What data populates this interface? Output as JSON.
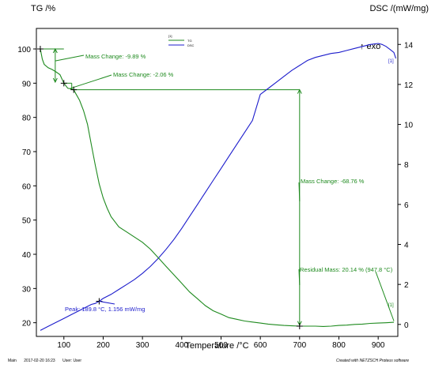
{
  "footer": {
    "view_name": "Main",
    "timestamp": "2017-02-20 16:23",
    "user": "User: User",
    "software_credit": "Created with NETZSCH Proteus software"
  },
  "chart_data": {
    "type": "line",
    "title": "",
    "xlabel": "Temperature /°C",
    "ylabel_left": "TG /%",
    "ylabel_right": "DSC /(mW/mg)",
    "right_axis_note": "↑ exo",
    "xlim": [
      30,
      950
    ],
    "ylim_left": [
      16,
      106
    ],
    "ylim_right": [
      -0.6,
      14.8
    ],
    "x_ticks": [
      100,
      200,
      300,
      400,
      500,
      600,
      700,
      800,
      900
    ],
    "y_ticks_left": [
      20,
      30,
      40,
      50,
      60,
      70,
      80,
      90,
      100
    ],
    "y_ticks_right": [
      0,
      2,
      4,
      6,
      8,
      10,
      12,
      14
    ],
    "grid": false,
    "legend": {
      "placement": "top-center",
      "entries": [
        {
          "tag": "[1]",
          "name": "TG",
          "color": "#1e8a1e"
        },
        {
          "tag": "",
          "name": "DSC",
          "color": "#1c1ccc"
        }
      ]
    },
    "colors": {
      "tg": "#1e8a1e",
      "dsc": "#1c1ccc",
      "frame": "#000000"
    },
    "series": [
      {
        "name": "TG",
        "axis": "left",
        "x": [
          40,
          45,
          50,
          60,
          70,
          80,
          90,
          100,
          110,
          120,
          125,
          130,
          140,
          150,
          160,
          170,
          180,
          190,
          200,
          210,
          220,
          240,
          260,
          280,
          300,
          320,
          340,
          360,
          380,
          400,
          420,
          440,
          460,
          480,
          500,
          520,
          540,
          560,
          580,
          600,
          620,
          640,
          660,
          680,
          700,
          720,
          740,
          760,
          780,
          800,
          820,
          840,
          860,
          880,
          900,
          920,
          940
        ],
        "y": [
          100.0,
          97.0,
          95.5,
          94.5,
          94.0,
          93.3,
          92.5,
          90.0,
          88.5,
          88.3,
          88.1,
          87.0,
          85.0,
          82.0,
          78.0,
          72.0,
          66.0,
          60.5,
          56.5,
          53.5,
          51.0,
          48.0,
          46.5,
          45.0,
          43.5,
          41.5,
          39.0,
          36.5,
          34.0,
          31.5,
          29.0,
          27.0,
          25.0,
          23.5,
          22.5,
          21.5,
          21.0,
          20.5,
          20.2,
          19.9,
          19.6,
          19.4,
          19.2,
          19.1,
          19.0,
          19.0,
          19.0,
          18.9,
          19.0,
          19.2,
          19.3,
          19.5,
          19.6,
          19.8,
          19.9,
          20.0,
          20.14
        ]
      },
      {
        "name": "DSC",
        "axis": "right",
        "x": [
          40,
          60,
          80,
          100,
          120,
          140,
          160,
          170,
          180,
          189.8,
          200,
          220,
          240,
          260,
          280,
          300,
          320,
          340,
          360,
          380,
          400,
          420,
          440,
          460,
          480,
          500,
          520,
          540,
          560,
          580,
          600,
          620,
          640,
          660,
          680,
          700,
          720,
          740,
          760,
          780,
          800,
          820,
          840,
          860,
          880,
          900,
          910,
          920,
          930,
          940,
          945
        ],
        "y": [
          -0.3,
          -0.1,
          0.1,
          0.3,
          0.5,
          0.7,
          0.9,
          1.0,
          1.05,
          1.156,
          1.3,
          1.5,
          1.75,
          2.0,
          2.25,
          2.55,
          2.9,
          3.3,
          3.75,
          4.25,
          4.8,
          5.4,
          6.0,
          6.6,
          7.2,
          7.8,
          8.4,
          9.0,
          9.6,
          10.2,
          11.5,
          11.8,
          12.1,
          12.4,
          12.7,
          12.95,
          13.2,
          13.35,
          13.45,
          13.55,
          13.6,
          13.7,
          13.8,
          13.9,
          14.0,
          14.05,
          14.0,
          13.9,
          13.75,
          13.6,
          13.3
        ]
      }
    ],
    "markers": [
      {
        "series": "TG",
        "x": 40,
        "y": 100.0
      },
      {
        "series": "TG",
        "x": 100,
        "y": 90.0
      },
      {
        "series": "TG",
        "x": 125,
        "y": 88.1
      },
      {
        "series": "TG",
        "x": 700,
        "y": 19.0
      },
      {
        "series": "DSC",
        "x": 189.8,
        "y": 1.156
      }
    ],
    "annotations": {
      "mass_change_1": "Mass Change: -9.89 %",
      "mass_change_2": "Mass Change: -2.06 %",
      "mass_change_3": "Mass Change: -68.76 %",
      "residual_mass": "Residual Mass: 20.14 % (947.8 °C)",
      "peak": "Peak: 189.8 °C, 1.156 mW/mg",
      "curve_tag_tg": "[1]",
      "curve_tag_dsc": "[1]"
    }
  }
}
